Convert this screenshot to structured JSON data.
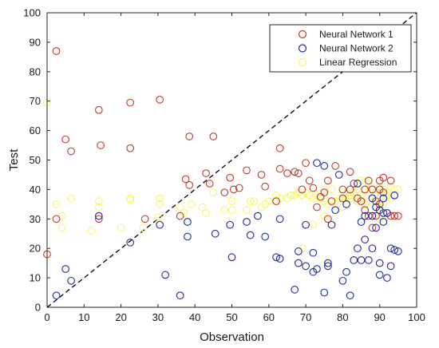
{
  "chart_data": {
    "type": "scatter",
    "title": "",
    "xlabel": "Observation",
    "ylabel": "Test",
    "xlim": [
      0,
      100
    ],
    "ylim": [
      0,
      100
    ],
    "xticks": [
      "0",
      "10",
      "20",
      "30",
      "40",
      "50",
      "60",
      "70",
      "80",
      "90",
      "100"
    ],
    "yticks": [
      "0",
      "10",
      "20",
      "30",
      "40",
      "50",
      "60",
      "70",
      "80",
      "90",
      "100"
    ],
    "legend_position": "top-right",
    "grid": false,
    "reference_line": {
      "style": "dashed",
      "from": [
        0,
        0
      ],
      "to": [
        100,
        100
      ],
      "color": "#000000"
    },
    "series": [
      {
        "name": "Neural Network 1",
        "color": "#c0392b",
        "marker": "open-circle",
        "points": [
          [
            0,
            18
          ],
          [
            2.5,
            87
          ],
          [
            2.5,
            30
          ],
          [
            5,
            57
          ],
          [
            6.5,
            53
          ],
          [
            14,
            67
          ],
          [
            14,
            30
          ],
          [
            14.5,
            55
          ],
          [
            22.5,
            69.5
          ],
          [
            22.5,
            54
          ],
          [
            26.5,
            30
          ],
          [
            30.5,
            70.5
          ],
          [
            36,
            31
          ],
          [
            37.5,
            43.5
          ],
          [
            38.5,
            58
          ],
          [
            38.5,
            41.5
          ],
          [
            43,
            45.5
          ],
          [
            44,
            42
          ],
          [
            45,
            58
          ],
          [
            48,
            39
          ],
          [
            49.5,
            44
          ],
          [
            50.5,
            40
          ],
          [
            52,
            40.5
          ],
          [
            54,
            46.5
          ],
          [
            58,
            45
          ],
          [
            59,
            41
          ],
          [
            62,
            36
          ],
          [
            63,
            54
          ],
          [
            63,
            47
          ],
          [
            65,
            45.5
          ],
          [
            67,
            46
          ],
          [
            68,
            45.5
          ],
          [
            69,
            40
          ],
          [
            70,
            49
          ],
          [
            71,
            43
          ],
          [
            72,
            40.5
          ],
          [
            73,
            34
          ],
          [
            74,
            37.5
          ],
          [
            75,
            39
          ],
          [
            76,
            43
          ],
          [
            77,
            36
          ],
          [
            78,
            48
          ],
          [
            80,
            40
          ],
          [
            82,
            40
          ],
          [
            82,
            46
          ],
          [
            83,
            42
          ],
          [
            84,
            37
          ],
          [
            85,
            36
          ],
          [
            86,
            40
          ],
          [
            86,
            33
          ],
          [
            87,
            31
          ],
          [
            87,
            43
          ],
          [
            88,
            40
          ],
          [
            89,
            36
          ],
          [
            89,
            31
          ],
          [
            90,
            43
          ],
          [
            90,
            40
          ],
          [
            90,
            35
          ],
          [
            91,
            44
          ],
          [
            91,
            39
          ],
          [
            92,
            32
          ],
          [
            93,
            43
          ],
          [
            93,
            31
          ],
          [
            94,
            31
          ],
          [
            95,
            31
          ],
          [
            80,
            37
          ],
          [
            76,
            30
          ],
          [
            88,
            27
          ]
        ]
      },
      {
        "name": "Neural Network 2",
        "color": "#1f2a9c",
        "marker": "open-circle",
        "points": [
          [
            2.5,
            4
          ],
          [
            5,
            13
          ],
          [
            6.5,
            9
          ],
          [
            14,
            31
          ],
          [
            22.5,
            22
          ],
          [
            30.5,
            28
          ],
          [
            32,
            11
          ],
          [
            36,
            4
          ],
          [
            38,
            24
          ],
          [
            38,
            29
          ],
          [
            45.5,
            25
          ],
          [
            49.5,
            28
          ],
          [
            50,
            17
          ],
          [
            54,
            29
          ],
          [
            55,
            24.5
          ],
          [
            57,
            31
          ],
          [
            59,
            24
          ],
          [
            62,
            17
          ],
          [
            63,
            16.5
          ],
          [
            63,
            30
          ],
          [
            67,
            6
          ],
          [
            68,
            15
          ],
          [
            68,
            19
          ],
          [
            70,
            14
          ],
          [
            70,
            28
          ],
          [
            72,
            18.5
          ],
          [
            72,
            12
          ],
          [
            73,
            49
          ],
          [
            73,
            13
          ],
          [
            75,
            48
          ],
          [
            75,
            5
          ],
          [
            76,
            15
          ],
          [
            76,
            14
          ],
          [
            77,
            28
          ],
          [
            79,
            45
          ],
          [
            80,
            9
          ],
          [
            81,
            12
          ],
          [
            81,
            35
          ],
          [
            82,
            4
          ],
          [
            83,
            16
          ],
          [
            84,
            20
          ],
          [
            84,
            42
          ],
          [
            85,
            16
          ],
          [
            85,
            29
          ],
          [
            86,
            23
          ],
          [
            87,
            16
          ],
          [
            88,
            20
          ],
          [
            88,
            31
          ],
          [
            89,
            34
          ],
          [
            89,
            27
          ],
          [
            90,
            15
          ],
          [
            90,
            33
          ],
          [
            90,
            11
          ],
          [
            91,
            37
          ],
          [
            91,
            29
          ],
          [
            92,
            10
          ],
          [
            92,
            32
          ],
          [
            93,
            14
          ],
          [
            93,
            20
          ],
          [
            94,
            19.5
          ],
          [
            94,
            38
          ],
          [
            95,
            19
          ],
          [
            86,
            31
          ],
          [
            78,
            33
          ],
          [
            88,
            37
          ],
          [
            91,
            32
          ]
        ]
      },
      {
        "name": "Linear Regression",
        "color": "#f7f76a",
        "marker": "open-circle",
        "points": [
          [
            0,
            69.5
          ],
          [
            2.5,
            35
          ],
          [
            4,
            27
          ],
          [
            4,
            31
          ],
          [
            6.5,
            37
          ],
          [
            12,
            26
          ],
          [
            14,
            34
          ],
          [
            14,
            36
          ],
          [
            20,
            27
          ],
          [
            22.5,
            37
          ],
          [
            22.5,
            36.5
          ],
          [
            26,
            27
          ],
          [
            30,
            30.5
          ],
          [
            30.5,
            37
          ],
          [
            30.5,
            35
          ],
          [
            36,
            34
          ],
          [
            37,
            32
          ],
          [
            38,
            29
          ],
          [
            39,
            35
          ],
          [
            42,
            34
          ],
          [
            43,
            32
          ],
          [
            45,
            39
          ],
          [
            48,
            33
          ],
          [
            50,
            33
          ],
          [
            50,
            36
          ],
          [
            54,
            33
          ],
          [
            55,
            36
          ],
          [
            56,
            36
          ],
          [
            58,
            34
          ],
          [
            59,
            35
          ],
          [
            60,
            36
          ],
          [
            62,
            38
          ],
          [
            63,
            37
          ],
          [
            65,
            37
          ],
          [
            66,
            38
          ],
          [
            67,
            38
          ],
          [
            69,
            38
          ],
          [
            69,
            20
          ],
          [
            70,
            39
          ],
          [
            71,
            38
          ],
          [
            72,
            37
          ],
          [
            72,
            28
          ],
          [
            73,
            38
          ],
          [
            74,
            37
          ],
          [
            75,
            40
          ],
          [
            75,
            36
          ],
          [
            76,
            35
          ],
          [
            77,
            40
          ],
          [
            78,
            36
          ],
          [
            79,
            37
          ],
          [
            80,
            39
          ],
          [
            80,
            34
          ],
          [
            81,
            37
          ],
          [
            82,
            38
          ],
          [
            83,
            39
          ],
          [
            84,
            40
          ],
          [
            84,
            36
          ],
          [
            85,
            38
          ],
          [
            86,
            40
          ],
          [
            86,
            35
          ],
          [
            87,
            39
          ],
          [
            87,
            36
          ],
          [
            88,
            40
          ],
          [
            88,
            37
          ],
          [
            89,
            39
          ],
          [
            89,
            34
          ],
          [
            90,
            41
          ],
          [
            90,
            36
          ],
          [
            91,
            40
          ],
          [
            91,
            35
          ],
          [
            92,
            39
          ],
          [
            92,
            38
          ],
          [
            93,
            41
          ],
          [
            93,
            37
          ],
          [
            94,
            40
          ],
          [
            95,
            40
          ],
          [
            85,
            43
          ],
          [
            82,
            37
          ],
          [
            87,
            42
          ],
          [
            90,
            30
          ],
          [
            75,
            31
          ],
          [
            68,
            39
          ]
        ]
      }
    ]
  }
}
